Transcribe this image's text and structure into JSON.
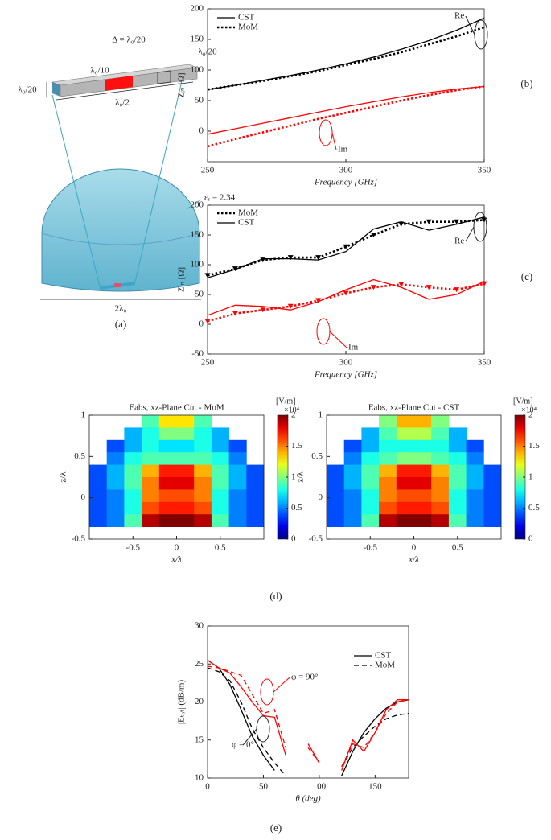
{
  "diagram": {
    "labels": {
      "thickness": "λ₀/20",
      "port": "λ₀/10",
      "delta": "Δ = λ₀/20",
      "gap": "λ₀/20",
      "length": "λ₀/2",
      "permittivity": "εᵣ = 2.34",
      "diameter": "2λ₀",
      "panel_label": "(a)"
    }
  },
  "chart_data": [
    {
      "type": "line",
      "panel_label": "(b)",
      "xlabel": "Frequency [GHz]",
      "ylabel": "Zᵢₙ [Ω]",
      "xlim": [
        250,
        350
      ],
      "xticks": [
        250,
        300,
        350
      ],
      "ylim": [
        -50,
        200
      ],
      "yticks": [
        0,
        50,
        100,
        150,
        200
      ],
      "annotations": [
        "Re",
        "Im"
      ],
      "x": [
        250,
        260,
        270,
        280,
        290,
        300,
        310,
        320,
        330,
        340,
        350
      ],
      "series": [
        {
          "name": "CST",
          "color": "#000000",
          "dash": "solid",
          "values": [
            68,
            75,
            83,
            91,
            100,
            110,
            121,
            134,
            148,
            165,
            185
          ]
        },
        {
          "name": "MoM",
          "color": "#000000",
          "dash": "dotted",
          "values": [
            68,
            75,
            82,
            90,
            98,
            108,
            118,
            129,
            142,
            155,
            170
          ]
        },
        {
          "color": "#ff0000",
          "dash": "solid",
          "values": [
            -5,
            4,
            13,
            22,
            31,
            40,
            48,
            56,
            63,
            69,
            73
          ]
        },
        {
          "color": "#ff0000",
          "dash": "dotted",
          "values": [
            -25,
            -13,
            -2,
            9,
            20,
            30,
            40,
            50,
            59,
            67,
            73
          ]
        }
      ]
    },
    {
      "type": "line",
      "panel_label": "(c)",
      "xlabel": "Frequency [GHz]",
      "ylabel": "Zᵢₙ [Ω]",
      "xlim": [
        250,
        350
      ],
      "xticks": [
        250,
        300,
        350
      ],
      "ylim": [
        -50,
        200
      ],
      "yticks": [
        -50,
        0,
        50,
        100,
        150,
        200
      ],
      "annotations": [
        "Re",
        "Im"
      ],
      "x": [
        250,
        260,
        270,
        280,
        290,
        300,
        310,
        320,
        330,
        340,
        350
      ],
      "series": [
        {
          "name": "MoM",
          "color": "#000000",
          "dash": "dotted",
          "marker": "triangle",
          "values": [
            82,
            93,
            108,
            112,
            112,
            130,
            150,
            168,
            172,
            172,
            175
          ]
        },
        {
          "name": "CST",
          "color": "#000000",
          "dash": "solid",
          "values": [
            78,
            92,
            110,
            110,
            108,
            122,
            160,
            172,
            158,
            168,
            180
          ]
        },
        {
          "color": "#ff0000",
          "dash": "dotted",
          "marker": "triangle",
          "values": [
            5,
            18,
            24,
            30,
            40,
            52,
            62,
            67,
            62,
            58,
            68
          ]
        },
        {
          "color": "#ff0000",
          "dash": "solid",
          "values": [
            15,
            32,
            30,
            24,
            38,
            58,
            75,
            62,
            42,
            50,
            72
          ]
        }
      ]
    },
    {
      "type": "heatmap",
      "title": "Eabs, xz-Plane Cut - MoM",
      "panel_label": "(d)",
      "xlabel": "x/λ",
      "ylabel": "z/λ",
      "colormap": "jet",
      "colorbar_label": "[V/m]",
      "colorbar_scale": "×10⁴",
      "xlim": [
        -1,
        1
      ],
      "xticks": [
        -0.5,
        0,
        0.5
      ],
      "ylim": [
        -0.5,
        1
      ],
      "yticks": [
        -0.5,
        0,
        0.5,
        1
      ],
      "clim": [
        0,
        2
      ],
      "cticks": [
        0,
        0.5,
        1,
        1.5,
        2
      ],
      "x": [
        -0.9,
        -0.7,
        -0.5,
        -0.3,
        -0.1,
        0.1,
        0.3,
        0.5,
        0.7,
        0.9
      ],
      "z": [
        0.925,
        0.775,
        0.625,
        0.475,
        0.325,
        0.175,
        0.025,
        -0.125,
        -0.275
      ],
      "values": [
        [
          null,
          null,
          null,
          0.9,
          1.3,
          1.3,
          0.9,
          null,
          null,
          null
        ],
        [
          null,
          null,
          0.6,
          0.8,
          1.0,
          1.0,
          0.8,
          0.6,
          null,
          null
        ],
        [
          null,
          0.4,
          0.6,
          0.8,
          0.7,
          0.7,
          0.8,
          0.6,
          0.4,
          null
        ],
        [
          null,
          0.5,
          0.8,
          0.9,
          0.9,
          0.9,
          0.9,
          0.8,
          0.5,
          null
        ],
        [
          0.4,
          0.6,
          0.9,
          1.4,
          1.7,
          1.7,
          1.4,
          0.9,
          0.6,
          0.4
        ],
        [
          0.4,
          0.6,
          0.9,
          1.5,
          1.8,
          1.8,
          1.5,
          0.9,
          0.6,
          0.4
        ],
        [
          0.4,
          0.5,
          0.8,
          1.5,
          1.6,
          1.6,
          1.5,
          0.8,
          0.5,
          0.4
        ],
        [
          0.4,
          0.5,
          0.8,
          1.6,
          1.7,
          1.7,
          1.6,
          0.8,
          0.5,
          0.4
        ],
        [
          0.4,
          0.5,
          0.9,
          1.9,
          2,
          2,
          1.9,
          0.9,
          0.5,
          0.4
        ]
      ]
    },
    {
      "type": "heatmap",
      "title": "Eabs, xz-Plane Cut - CST",
      "xlabel": "x/λ",
      "ylabel": "z/λ",
      "colormap": "jet",
      "colorbar_label": "[V/m]",
      "colorbar_scale": "×10⁴",
      "xlim": [
        -1,
        1
      ],
      "xticks": [
        -0.5,
        0,
        0.5
      ],
      "ylim": [
        -0.5,
        1
      ],
      "yticks": [
        -0.5,
        0,
        0.5,
        1
      ],
      "clim": [
        0,
        2
      ],
      "cticks": [
        0,
        0.5,
        1,
        1.5,
        2
      ],
      "x": [
        -0.9,
        -0.7,
        -0.5,
        -0.3,
        -0.1,
        0.1,
        0.3,
        0.5,
        0.7,
        0.9
      ],
      "z": [
        0.925,
        0.775,
        0.625,
        0.475,
        0.325,
        0.175,
        0.025,
        -0.125,
        -0.275
      ],
      "values": [
        [
          null,
          null,
          null,
          1.0,
          1.4,
          1.4,
          1.0,
          null,
          null,
          null
        ],
        [
          null,
          null,
          0.6,
          0.9,
          1.1,
          1.1,
          0.9,
          0.6,
          null,
          null
        ],
        [
          null,
          0.4,
          0.6,
          0.8,
          0.8,
          0.8,
          0.8,
          0.6,
          0.4,
          null
        ],
        [
          null,
          0.5,
          0.8,
          0.9,
          1.0,
          1.0,
          0.9,
          0.8,
          0.5,
          null
        ],
        [
          0.4,
          0.6,
          0.9,
          1.4,
          1.7,
          1.7,
          1.4,
          0.9,
          0.6,
          0.4
        ],
        [
          0.4,
          0.6,
          0.9,
          1.5,
          1.8,
          1.8,
          1.5,
          0.9,
          0.6,
          0.4
        ],
        [
          0.4,
          0.5,
          0.8,
          1.5,
          1.6,
          1.6,
          1.5,
          0.8,
          0.5,
          0.4
        ],
        [
          0.4,
          0.5,
          0.8,
          1.6,
          1.7,
          1.7,
          1.6,
          0.8,
          0.5,
          0.4
        ],
        [
          0.4,
          0.5,
          0.9,
          1.9,
          2,
          2,
          1.9,
          0.9,
          0.5,
          0.4
        ]
      ]
    },
    {
      "type": "line",
      "panel_label": "(e)",
      "xlabel": "θ (deg)",
      "ylabel": "|Eₜₒₜ| (dB/m)",
      "xlim": [
        0,
        180
      ],
      "xticks": [
        0,
        50,
        100,
        150
      ],
      "ylim": [
        10,
        30
      ],
      "yticks": [
        10,
        15,
        20,
        25,
        30
      ],
      "annotations": [
        "φ = 90°",
        "φ = 0°"
      ],
      "x": [
        0,
        10,
        20,
        30,
        40,
        50,
        60,
        70,
        80,
        90,
        100,
        110,
        120,
        130,
        140,
        150,
        160,
        170,
        180
      ],
      "series": [
        {
          "name": "CST",
          "color": "#000000",
          "dash": "solid",
          "values": [
            25.5,
            24.5,
            22.3,
            19,
            15.5,
            13,
            11,
            null,
            null,
            null,
            null,
            null,
            10.3,
            13.5,
            16,
            17.8,
            19.2,
            20,
            20.3
          ]
        },
        {
          "name": "MoM",
          "color": "#000000",
          "dash": "dashed",
          "values": [
            24.5,
            24,
            22.8,
            20,
            16.5,
            14,
            12,
            10.3,
            null,
            null,
            null,
            null,
            11.5,
            14,
            15.5,
            16.8,
            17.8,
            18.3,
            18.5
          ]
        },
        {
          "color": "#ff0000",
          "dash": "solid",
          "values": [
            25.5,
            24.5,
            23.8,
            22,
            20,
            18.2,
            18,
            13,
            null,
            14.5,
            12,
            null,
            11,
            15,
            13.5,
            16,
            19,
            20.3,
            20.3
          ]
        },
        {
          "color": "#ff0000",
          "dash": "dashed",
          "values": [
            24.7,
            24.5,
            24,
            23.5,
            21,
            18.5,
            19,
            14,
            null,
            14,
            12,
            null,
            11.5,
            14.5,
            14,
            16,
            18.5,
            20,
            20.3
          ]
        }
      ]
    }
  ]
}
